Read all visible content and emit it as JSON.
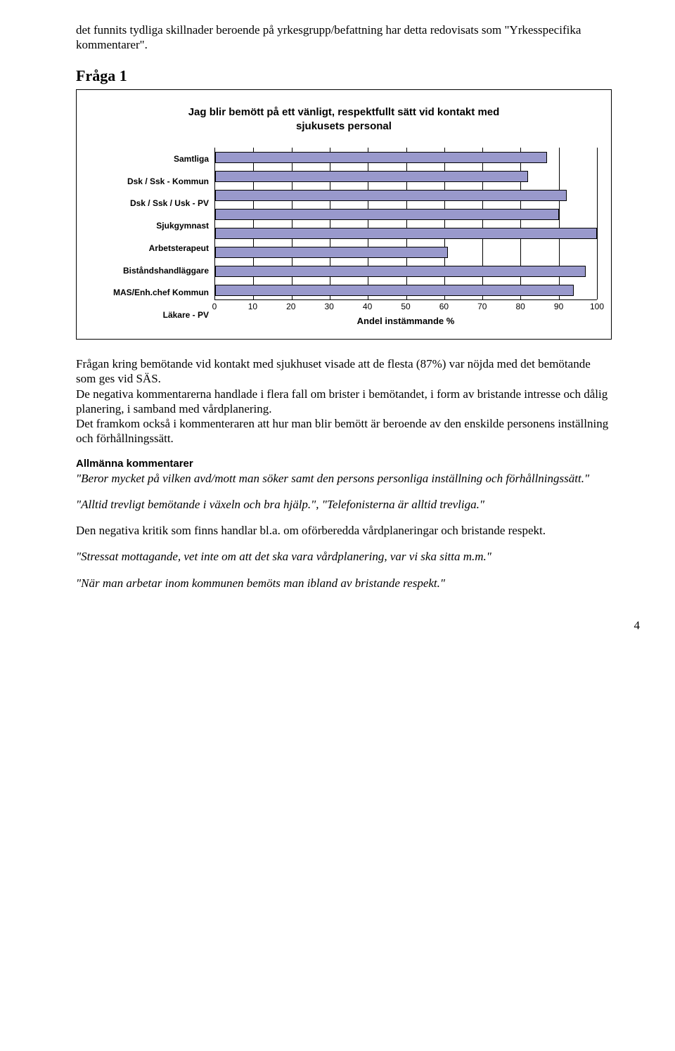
{
  "intro_text": "det funnits tydliga skillnader beroende på yrkesgrupp/befattning har detta redovisats som \"Yrkesspecifika kommentarer\".",
  "question_heading": "Fråga 1",
  "chart": {
    "type": "bar-horizontal",
    "title_line1": "Jag blir bemött på ett vänligt, respektfullt sätt vid kontakt med",
    "title_line2": "sjukusets personal",
    "categories": [
      "Samtliga",
      "Dsk / Ssk  - Kommun",
      "Dsk / Ssk / Usk  - PV",
      "Sjukgymnast",
      "Arbetsterapeut",
      "Biståndshandläggare",
      "MAS/Enh.chef Kommun",
      "Läkare - PV"
    ],
    "values": [
      87,
      82,
      92,
      90,
      100,
      61,
      97,
      94
    ],
    "bar_color": "#9999cc",
    "bar_border": "#000000",
    "grid_color": "#000000",
    "background": "#ffffff",
    "xlim": [
      0,
      100
    ],
    "xtick_step": 10,
    "xticks": [
      "0",
      "10",
      "20",
      "30",
      "40",
      "50",
      "60",
      "70",
      "80",
      "90",
      "100"
    ],
    "x_title": "Andel instämmande  %",
    "label_fontsize": 12,
    "title_fontsize": 15
  },
  "body_para1": "Frågan kring bemötande vid kontakt med sjukhuset visade att de flesta (87%) var nöjda med det bemötande som ges vid SÄS.",
  "body_para2": "De negativa kommentarerna handlade i flera fall om brister i bemötandet, i form av bristande intresse och  dålig planering, i samband med vårdplanering.",
  "body_para3": "Det framkom också i kommenteraren att hur man blir bemött är beroende av den enskilde personens inställning och förhållningssätt.",
  "allmanna_heading": "Allmänna kommentarer",
  "quote1": "\"Beror mycket på vilken avd/mott man söker samt den persons personliga inställning och förhållningssätt.\"",
  "quote2": "\"Alltid trevligt bemötande i växeln och bra hjälp.\", \"Telefonisterna är alltid trevliga.\"",
  "body_para4": "Den negativa kritik som finns handlar bl.a. om oförberedda vårdplaneringar och bristande respekt.",
  "quote3": "\"Stressat mottagande, vet inte om att det ska vara vårdplanering, var vi ska sitta m.m.\"",
  "quote4": "\"När man arbetar inom kommunen bemöts man ibland av bristande respekt.\"",
  "page_number": "4"
}
